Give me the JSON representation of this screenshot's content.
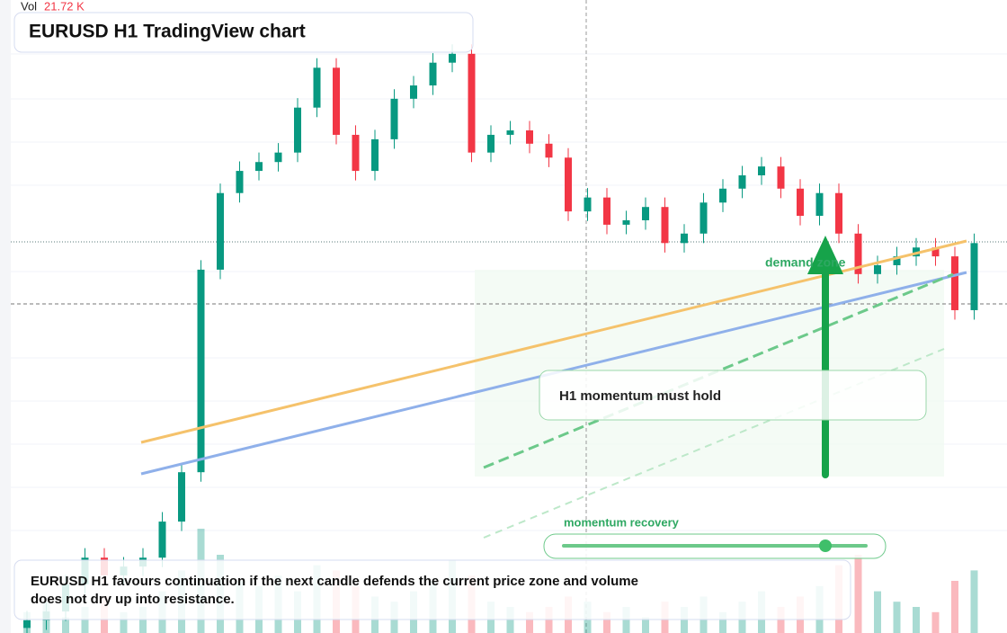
{
  "chart_data": {
    "type": "candlestick",
    "title": "EURUSD H1 TradingView chart",
    "volume_label": "Vol",
    "volume_value": "21.72 K",
    "annotations": {
      "zone": "demand zone",
      "hold": "H1 momentum must hold",
      "recovery": "momentum recovery"
    },
    "caption": "EURUSD H1 favours continuation if the next candle defends the current price zone and volume does not dry up into resistance.",
    "ylim": [
      0,
      100
    ],
    "volume_lim": [
      0,
      25
    ],
    "up_color": "#089981",
    "down_color": "#f23645",
    "open": [
      0.8,
      2.0,
      3.4,
      7.7,
      11.9,
      9.1,
      10.5,
      11.9,
      17.6,
      25.4,
      57.4,
      69.5,
      73.0,
      74.4,
      75.9,
      83.0,
      89.3,
      78.7,
      73.0,
      78.0,
      84.4,
      86.5,
      90.1,
      91.5,
      75.9,
      78.7,
      79.4,
      77.3,
      75.1,
      66.6,
      68.8,
      64.5,
      65.2,
      67.3,
      61.6,
      63.1,
      68.0,
      70.2,
      72.3,
      73.7,
      70.2,
      65.9,
      69.5,
      63.1,
      56.7,
      58.1,
      59.5,
      60.9,
      59.5,
      51.0
    ],
    "high": [
      3.5,
      4.9,
      9.2,
      13.4,
      13.4,
      12.0,
      13.4,
      19.1,
      26.9,
      58.9,
      71.0,
      74.5,
      75.9,
      77.4,
      84.5,
      90.8,
      90.8,
      80.2,
      79.5,
      85.9,
      88.0,
      91.6,
      93.0,
      93.0,
      80.2,
      80.9,
      80.9,
      78.8,
      76.6,
      70.3,
      70.3,
      66.7,
      68.8,
      68.8,
      64.6,
      69.5,
      71.7,
      73.8,
      75.2,
      75.2,
      71.7,
      71.0,
      71.0,
      64.6,
      59.6,
      61.0,
      62.4,
      62.4,
      61.0,
      63.1
    ],
    "low": [
      0.0,
      0.5,
      1.9,
      6.2,
      7.6,
      7.6,
      9.0,
      10.4,
      16.1,
      23.9,
      55.9,
      68.0,
      71.5,
      72.9,
      74.4,
      81.5,
      77.2,
      71.5,
      71.5,
      76.5,
      82.9,
      85.0,
      88.6,
      74.4,
      74.4,
      77.2,
      75.8,
      73.6,
      65.1,
      65.1,
      63.0,
      63.0,
      63.7,
      60.1,
      60.1,
      61.6,
      66.5,
      68.7,
      70.8,
      68.7,
      64.4,
      64.4,
      61.6,
      55.2,
      55.2,
      56.6,
      58.0,
      58.0,
      49.5,
      49.5
    ],
    "close": [
      2.0,
      3.4,
      7.7,
      11.9,
      9.1,
      10.5,
      11.9,
      17.6,
      25.4,
      57.4,
      69.5,
      73.0,
      74.4,
      75.9,
      83.0,
      89.3,
      78.7,
      73.0,
      78.0,
      84.4,
      86.5,
      90.1,
      91.5,
      75.9,
      78.7,
      79.4,
      77.3,
      75.1,
      66.6,
      68.8,
      64.5,
      65.2,
      67.3,
      61.6,
      63.1,
      68.0,
      70.2,
      72.3,
      73.7,
      70.2,
      65.9,
      69.5,
      63.1,
      56.7,
      58.1,
      59.5,
      60.9,
      59.5,
      51.0,
      61.6
    ],
    "volume": [
      4,
      6,
      3,
      5,
      7,
      4,
      5,
      8,
      12,
      20,
      15,
      10,
      9,
      11,
      8,
      13,
      12,
      9,
      7,
      6,
      8,
      10,
      14,
      11,
      6,
      5,
      4,
      5,
      7,
      6,
      4,
      5,
      3,
      6,
      5,
      7,
      4,
      6,
      8,
      5,
      7,
      9,
      13,
      15,
      8,
      6,
      5,
      4,
      10,
      12
    ]
  }
}
